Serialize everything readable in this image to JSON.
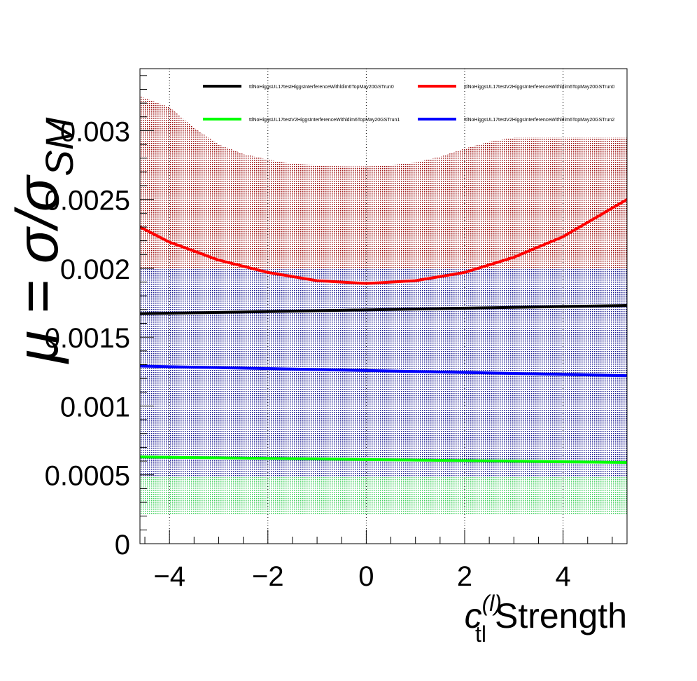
{
  "chart_data": {
    "type": "line",
    "title": "",
    "xlabel": "Strength",
    "xlabel_symbol": "c",
    "xlabel_superscript": "(l)",
    "xlabel_subscript": "tl",
    "ylabel": "μ = σ/σ",
    "ylabel_subscript": "SM",
    "xlim": [
      -4.6,
      5.3
    ],
    "ylim": [
      0,
      0.00345
    ],
    "x_ticks": [
      -4,
      -2,
      0,
      2,
      4
    ],
    "x_tick_labels": [
      "−4",
      "−2",
      "0",
      "2",
      "4"
    ],
    "y_ticks": [
      0,
      0.0005,
      0.001,
      0.0015,
      0.002,
      0.0025,
      0.003
    ],
    "y_tick_labels": [
      "0",
      "0.0005",
      "0.001",
      "0.0015",
      "0.002",
      "0.0025",
      "0.003"
    ],
    "grid": "dotted vertical at major x ticks",
    "legend_position": "top",
    "series": [
      {
        "name": "ttlNoHiggsUL17testHiggsInterferenceWithldim6TopMay20GSTrun0",
        "color": "#000000",
        "x": [
          -4.6,
          5.3
        ],
        "y": [
          0.00167,
          0.00173
        ],
        "band": {
          "x": [],
          "lo": [],
          "hi": []
        }
      },
      {
        "name": "ttlNoHiggsUL17testV2HiggsInterferenceWithldim6TopMay20GSTrun0",
        "color": "#ff0000",
        "x": [
          -4.6,
          -4,
          -3,
          -2,
          -1,
          0,
          1,
          2,
          3,
          4,
          5.3
        ],
        "y": [
          0.0023,
          0.00219,
          0.00206,
          0.00197,
          0.00191,
          0.00189,
          0.00191,
          0.00197,
          0.00208,
          0.00223,
          0.0025
        ],
        "band": {
          "x": [
            -4.6,
            -4,
            -3.5,
            -3,
            -2.5,
            -2,
            -1.5,
            -1,
            -0.5,
            0,
            0.5,
            1,
            1.5,
            2,
            2.5,
            3,
            4,
            5.3
          ],
          "lo": [
            0.002,
            0.002,
            0.002,
            0.002,
            0.002,
            0.002,
            0.002,
            0.002,
            0.002,
            0.002,
            0.002,
            0.002,
            0.002,
            0.002,
            0.002,
            0.002,
            0.002,
            0.002
          ],
          "hi": [
            0.00325,
            0.00317,
            0.00302,
            0.0029,
            0.00283,
            0.00279,
            0.00276,
            0.00275,
            0.00274,
            0.00274,
            0.00275,
            0.00277,
            0.00281,
            0.00287,
            0.00292,
            0.00295,
            0.00295,
            0.00295
          ]
        }
      },
      {
        "name": "ttlNoHiggsUL17testV2HiggsInterferenceWithldim6TopMay20GSTrun1",
        "color": "#00ff00",
        "x": [
          -4.6,
          5.3
        ],
        "y": [
          0.00063,
          0.00059
        ],
        "band": {
          "x": [
            -4.6,
            5.3
          ],
          "lo": [
            0.00021,
            0.00021
          ],
          "hi": [
            0.00049,
            0.00049
          ]
        }
      },
      {
        "name": "ttlNoHiggsUL17testV2HiggsInterferenceWithldim6TopMay20GSTrun2",
        "color": "#0000ff",
        "x": [
          -4.6,
          5.3
        ],
        "y": [
          0.00129,
          0.00122
        ],
        "band": {
          "x": [
            -4.6,
            5.3
          ],
          "lo": [
            0.00049,
            0.00049
          ],
          "hi": [
            0.00205,
            0.00205
          ]
        }
      }
    ]
  }
}
